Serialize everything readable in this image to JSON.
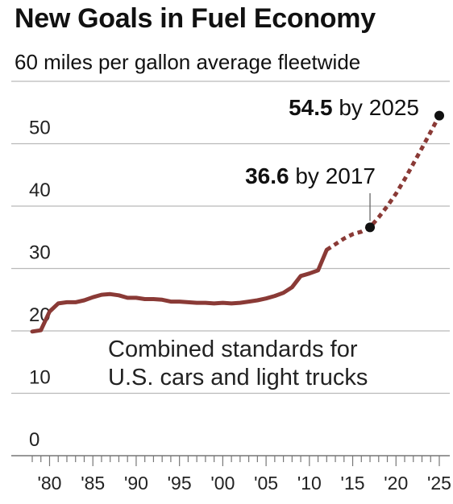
{
  "title": "New Goals in Fuel Economy",
  "subtitle": "60 miles per gallon average fleetwide",
  "chart_data": {
    "type": "line",
    "title": "New Goals in Fuel Economy",
    "subtitle": "60 miles per gallon average fleetwide",
    "xlabel": "",
    "ylabel": "",
    "xlim": [
      1978,
      2025
    ],
    "ylim": [
      0,
      60
    ],
    "grid": true,
    "y_ticks": [
      0,
      10,
      20,
      30,
      40,
      50
    ],
    "y_tick_labels": [
      "0",
      "10",
      "20",
      "30",
      "40",
      "50"
    ],
    "x_ticks": [
      1980,
      1985,
      1990,
      1995,
      2000,
      2005,
      2010,
      2015,
      2020,
      2025
    ],
    "x_tick_labels": [
      "'80",
      "'85",
      "'90",
      "'95",
      "'00",
      "'05",
      "'10",
      "'15",
      "'20",
      "'25"
    ],
    "color": "#8a3a36",
    "series": [
      {
        "style": "solid",
        "x": [
          1978,
          1979,
          1980,
          1981,
          1982,
          1983,
          1984,
          1985,
          1986,
          1987,
          1988,
          1989,
          1990,
          1991,
          1992,
          1993,
          1994,
          1995,
          1996,
          1997,
          1998,
          1999,
          2000,
          2001,
          2002,
          2003,
          2004,
          2005,
          2006,
          2007,
          2008,
          2009,
          2010,
          2011,
          2012
        ],
        "y": [
          19.9,
          20.1,
          23.1,
          24.4,
          24.6,
          24.6,
          24.9,
          25.4,
          25.8,
          25.9,
          25.7,
          25.3,
          25.3,
          25.1,
          25.1,
          25.0,
          24.7,
          24.7,
          24.6,
          24.5,
          24.5,
          24.4,
          24.5,
          24.4,
          24.5,
          24.7,
          24.9,
          25.2,
          25.6,
          26.1,
          27.0,
          28.8,
          29.2,
          29.7,
          33.0
        ]
      },
      {
        "style": "dotted",
        "x": [
          2012,
          2013,
          2014,
          2015,
          2016,
          2017,
          2018,
          2019,
          2020,
          2021,
          2022,
          2023,
          2024,
          2025
        ],
        "y": [
          33.0,
          33.9,
          34.8,
          35.5,
          35.9,
          36.6,
          38.2,
          40.0,
          42.0,
          44.3,
          46.8,
          49.3,
          51.9,
          54.5
        ]
      }
    ],
    "annotations": [
      {
        "x": 2017,
        "y": 36.6,
        "value": "36.6",
        "text": "by 2017"
      },
      {
        "x": 2025,
        "y": 54.5,
        "value": "54.5",
        "text": "by 2025"
      }
    ],
    "note": [
      "Combined standards for",
      "U.S. cars and light trucks"
    ]
  }
}
